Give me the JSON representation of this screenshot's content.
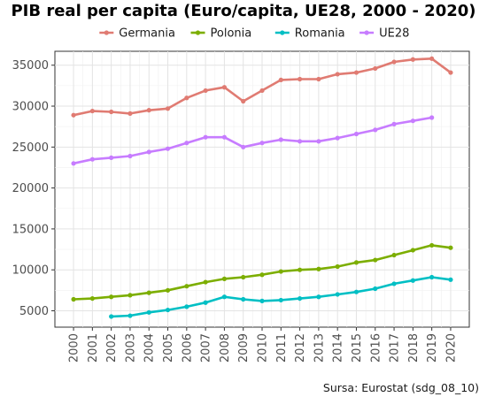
{
  "chart_data": {
    "type": "line",
    "title": "PIB real per capita (Euro/capita, UE28, 2000 - 2020)",
    "caption": "Sursa: Eurostat (sdg_08_10)",
    "legend_position": "top",
    "x": [
      2000,
      2001,
      2002,
      2003,
      2004,
      2005,
      2006,
      2007,
      2008,
      2009,
      2010,
      2011,
      2012,
      2013,
      2014,
      2015,
      2016,
      2017,
      2018,
      2019,
      2020
    ],
    "ylim": [
      3000,
      36700
    ],
    "yticks": [
      5000,
      10000,
      15000,
      20000,
      25000,
      30000,
      35000
    ],
    "grid": true,
    "series": [
      {
        "name": "Germania",
        "color": "#E07B72",
        "values": [
          28900,
          29400,
          29300,
          29100,
          29500,
          29700,
          31000,
          31900,
          32300,
          30600,
          31900,
          33200,
          33300,
          33300,
          33900,
          34100,
          34600,
          35400,
          35700,
          35800,
          34100
        ]
      },
      {
        "name": "Polonia",
        "color": "#7CAE00",
        "values": [
          6400,
          6500,
          6700,
          6900,
          7200,
          7500,
          8000,
          8500,
          8900,
          9100,
          9400,
          9800,
          10000,
          10100,
          10400,
          10900,
          11200,
          11800,
          12400,
          13000,
          12700
        ]
      },
      {
        "name": "Romania",
        "color": "#00BFC4",
        "values": [
          null,
          null,
          4300,
          4400,
          4800,
          5100,
          5500,
          6000,
          6700,
          6400,
          6200,
          6300,
          6500,
          6700,
          7000,
          7300,
          7700,
          8300,
          8700,
          9100,
          8800
        ]
      },
      {
        "name": "UE28",
        "color": "#C77CFF",
        "values": [
          23000,
          23500,
          23700,
          23900,
          24400,
          24800,
          25500,
          26200,
          26200,
          25000,
          25500,
          25900,
          25700,
          25700,
          26100,
          26600,
          27100,
          27800,
          28200,
          28600,
          null
        ]
      }
    ]
  }
}
